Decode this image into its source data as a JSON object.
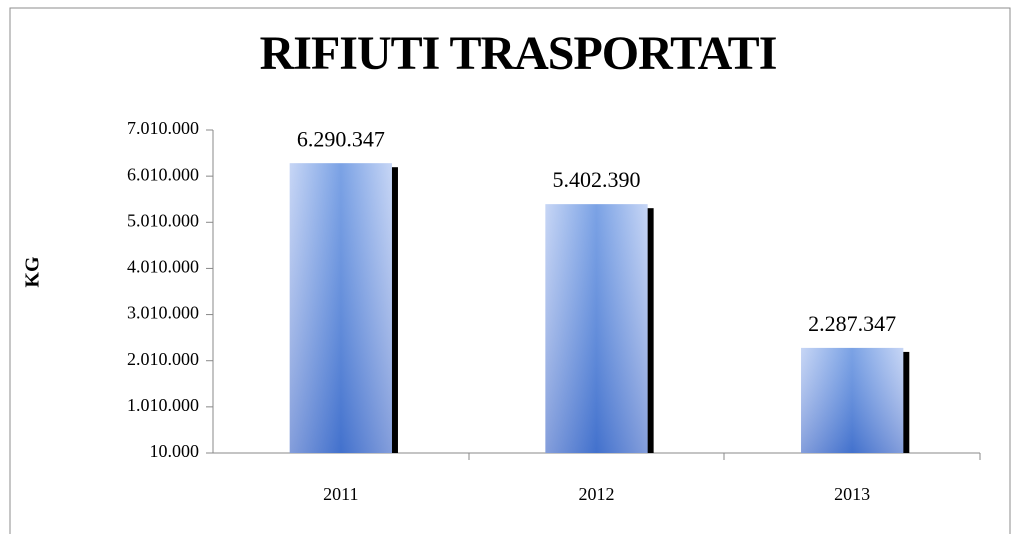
{
  "chart_data": {
    "type": "bar",
    "title": "RIFIUTI TRASPORTATI",
    "y_label": "KG",
    "categories": [
      "2011",
      "2012",
      "2013"
    ],
    "values": [
      6290347,
      5402390,
      2287347
    ],
    "value_labels": [
      "6.290.347",
      "5.402.390",
      "2.287.347"
    ],
    "color": "#5b8ee0",
    "ylim": [
      10000,
      7010000
    ],
    "yticks": [
      {
        "value": 10000,
        "label": "10.000"
      },
      {
        "value": 1010000,
        "label": "1.010.000"
      },
      {
        "value": 2010000,
        "label": "2.010.000"
      },
      {
        "value": 3010000,
        "label": "3.010.000"
      },
      {
        "value": 4010000,
        "label": "4.010.000"
      },
      {
        "value": 5010000,
        "label": "5.010.000"
      },
      {
        "value": 6010000,
        "label": "6.010.000"
      },
      {
        "value": 7010000,
        "label": "7.010.000"
      }
    ],
    "grid": false
  }
}
